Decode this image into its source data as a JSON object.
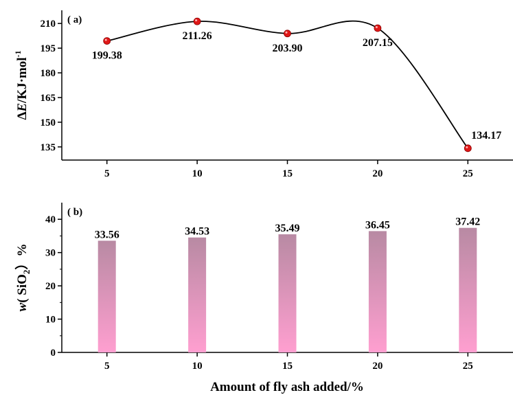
{
  "chart_data": [
    {
      "type": "line",
      "panel_label": "( a)",
      "ylabel_prefix": "Δ",
      "ylabel_italic": "E",
      "ylabel_rest": "/KJ·mol",
      "ylabel_sup": "-1",
      "x": [
        5,
        10,
        15,
        20,
        25
      ],
      "x_tick_labels": [
        "5",
        "10",
        "15",
        "20",
        "25"
      ],
      "y_ticks": [
        135,
        150,
        165,
        180,
        195,
        210
      ],
      "y_tick_labels": [
        "135",
        "150",
        "165",
        "180",
        "195",
        "210"
      ],
      "ylim": [
        127,
        218
      ],
      "xlim": [
        2.5,
        27.5
      ],
      "values": [
        199.38,
        211.26,
        203.9,
        207.15,
        134.17
      ],
      "data_labels": [
        "199.38",
        "211.26",
        "203.90",
        "207.15",
        "134.17"
      ],
      "marker_color": "#e01818",
      "line_color": "#000000",
      "grid": false
    },
    {
      "type": "bar",
      "panel_label": "( b)",
      "ylabel_italic": "w",
      "ylabel_rest": "( SiO",
      "ylabel_sub": "2",
      "ylabel_end": "）%",
      "categories": [
        5,
        10,
        15,
        20,
        25
      ],
      "x_tick_labels": [
        "5",
        "10",
        "15",
        "20",
        "25"
      ],
      "y_ticks": [
        0,
        10,
        20,
        30,
        40
      ],
      "y_tick_labels": [
        "0",
        "10",
        "20",
        "30",
        "40"
      ],
      "ylim": [
        0,
        45
      ],
      "xlim": [
        2.5,
        27.5
      ],
      "values": [
        33.56,
        34.53,
        35.49,
        36.45,
        37.42
      ],
      "data_labels": [
        "33.56",
        "34.53",
        "35.49",
        "36.45",
        "37.42"
      ],
      "bar_color_top": "#b88aa3",
      "bar_color_bottom": "#ff9fd0",
      "xlabel": "Amount of fly ash added/%",
      "grid": false
    }
  ]
}
